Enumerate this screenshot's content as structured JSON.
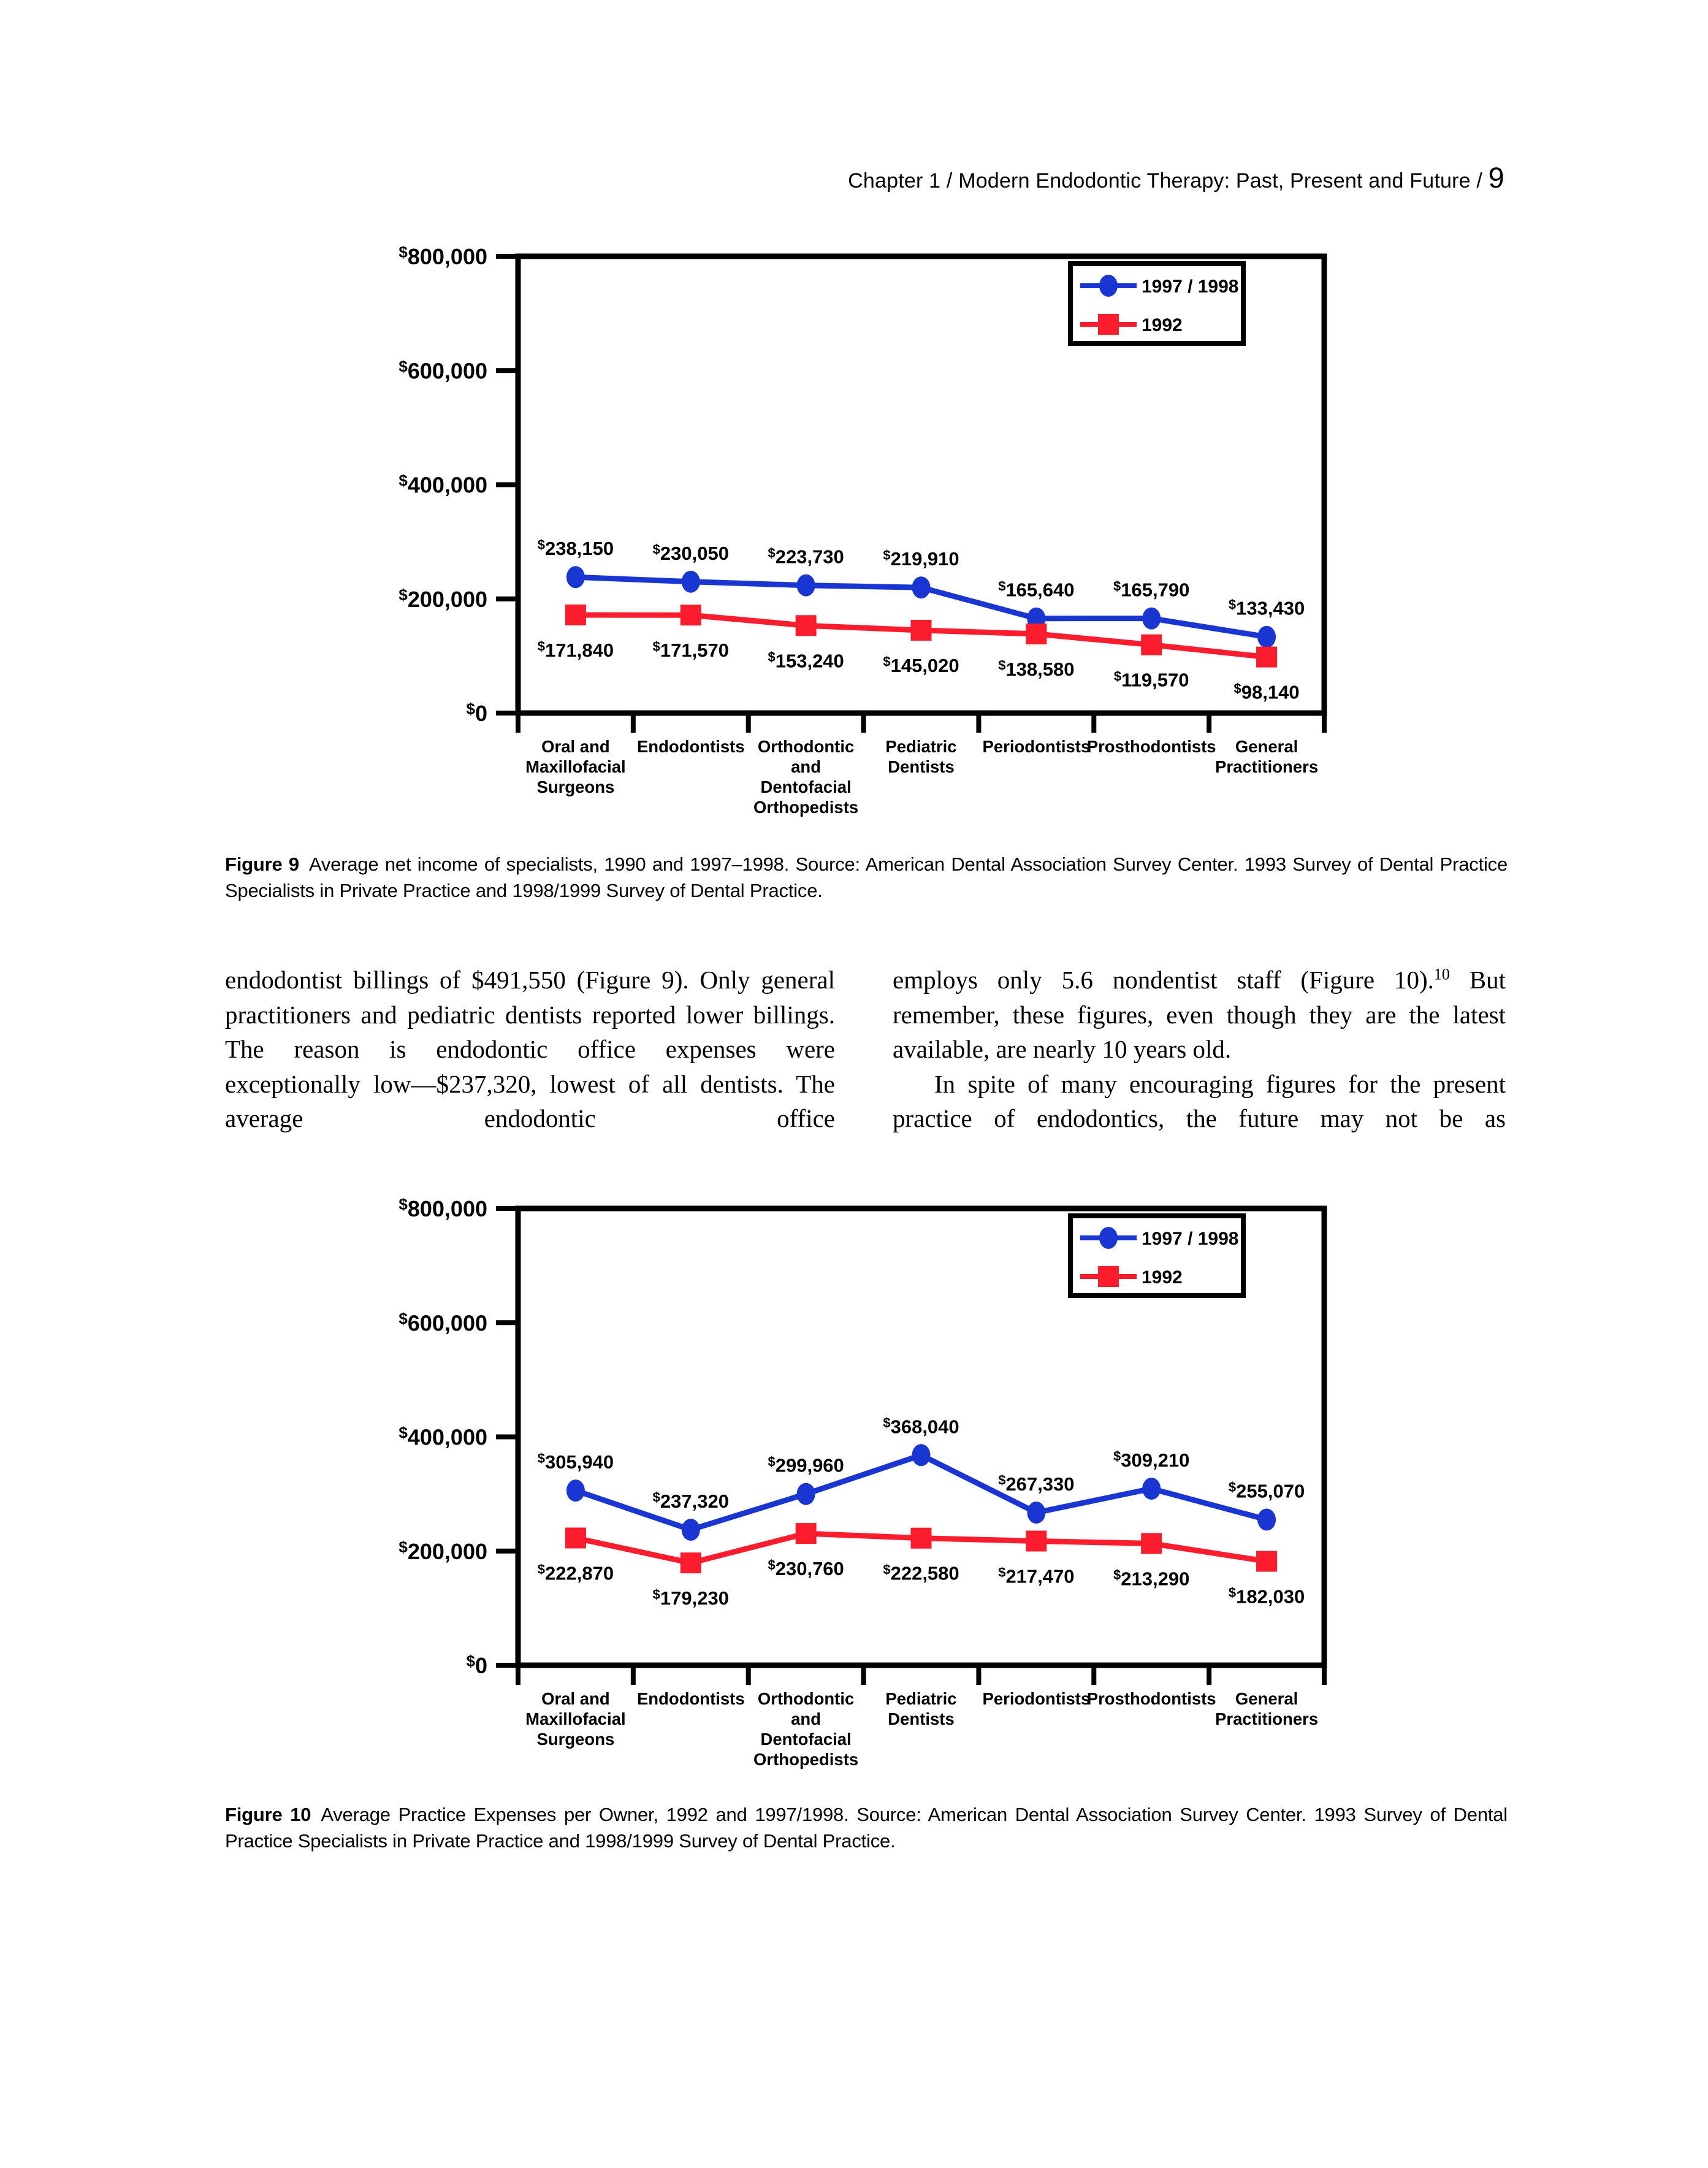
{
  "page": {
    "header": {
      "text": "Chapter 1 / Modern Endodontic Therapy: Past, Present and Future / ",
      "page_number": "9"
    },
    "captions": {
      "fig9_label": "Figure 9",
      "fig9_text": "Average net income of specialists, 1990 and 1997–1998. Source: American Dental Association Survey Center. 1993 Survey of Dental Practice Specialists in Private Practice and 1998/1999 Survey of Dental Practice.",
      "fig10_label": "Figure 10",
      "fig10_text": "Average Practice Expenses per Owner, 1992 and 1997/1998. Source: American Dental Association Survey Center. 1993 Survey of Dental Practice Specialists in Private Practice and 1998/1999 Survey of Dental Practice."
    },
    "body": {
      "left_column": "endodontist billings of $491,550 (Figure 9). Only general practitioners and pediatric dentists reported lower billings. The reason is endodontic office expenses were exceptionally low—$237,320, lowest of all dentists. The average endodontic office",
      "right_column": {
        "p1_before": "employs only 5.6 nondentist staff (Figure 10).",
        "p1_sup": "10",
        "p1_after": " But remember, these figures, even though they are the latest available, are nearly 10 years old.",
        "p2": "In spite of many encouraging figures for the present practice of endodontics, the future may not be as"
      }
    }
  },
  "colors": {
    "series_1997_1998": "#1a36d2",
    "series_1992": "#fb1c2e",
    "axis": "#000000"
  },
  "chart_data": [
    {
      "id": "figure9",
      "type": "line",
      "title": "Average net income of specialists, 1990 and 1997–1998",
      "categories": [
        "Oral and Maxillofacial Surgeons",
        "Endodontists",
        "Orthodontic and Dentofacial Orthopedists",
        "Pediatric Dentists",
        "Periodontists",
        "Prosthodontists",
        "General Practitioners"
      ],
      "category_lines": [
        [
          "Oral and",
          "Maxillofacial",
          "Surgeons"
        ],
        [
          "Endodontists"
        ],
        [
          "Orthodontic",
          "and",
          "Dentofacial",
          "Orthopedists"
        ],
        [
          "Pediatric",
          "Dentists"
        ],
        [
          "Periodontists"
        ],
        [
          "Prosthodontists"
        ],
        [
          "General",
          "Practitioners"
        ]
      ],
      "series": [
        {
          "name": "1997 / 1998",
          "marker": "circle",
          "color_key": "series_1997_1998",
          "values": [
            238150,
            230050,
            223730,
            219910,
            165640,
            165790,
            133430
          ],
          "point_labels": [
            "238,150",
            "230,050",
            "223,730",
            "219,910",
            "165,640",
            "165,790",
            "133,430"
          ]
        },
        {
          "name": "1992",
          "marker": "square",
          "color_key": "series_1992",
          "values": [
            171840,
            171570,
            153240,
            145020,
            138580,
            119570,
            98140
          ],
          "point_labels": [
            "171,840",
            "171,570",
            "153,240",
            "145,020",
            "138,580",
            "119,570",
            "98,140"
          ]
        }
      ],
      "ylim": [
        0,
        800000
      ],
      "ytick_values": [
        800000,
        600000,
        400000,
        200000,
        0
      ],
      "ytick_labels": [
        "800,000",
        "600,000",
        "400,000",
        "200,000",
        "0"
      ],
      "legend": {
        "entries": [
          "1997 / 1998",
          "1992"
        ],
        "position": "top-right"
      },
      "grid": false
    },
    {
      "id": "figure10",
      "type": "line",
      "title": "Average Practice Expenses per Owner, 1992 and 1997/1998",
      "categories": [
        "Oral and Maxillofacial Surgeons",
        "Endodontists",
        "Orthodontic and Dentofacial Orthopedists",
        "Pediatric Dentists",
        "Periodontists",
        "Prosthodontists",
        "General Practitioners"
      ],
      "category_lines": [
        [
          "Oral and",
          "Maxillofacial",
          "Surgeons"
        ],
        [
          "Endodontists"
        ],
        [
          "Orthodontic",
          "and",
          "Dentofacial",
          "Orthopedists"
        ],
        [
          "Pediatric",
          "Dentists"
        ],
        [
          "Periodontists"
        ],
        [
          "Prosthodontists"
        ],
        [
          "General",
          "Practitioners"
        ]
      ],
      "series": [
        {
          "name": "1997 / 1998",
          "marker": "circle",
          "color_key": "series_1997_1998",
          "values": [
            305940,
            237320,
            299960,
            368040,
            267330,
            309210,
            255070
          ],
          "point_labels": [
            "305,940",
            "237,320",
            "299,960",
            "368,040",
            "267,330",
            "309,210",
            "255,070"
          ]
        },
        {
          "name": "1992",
          "marker": "square",
          "color_key": "series_1992",
          "values": [
            222870,
            179230,
            230760,
            222580,
            217470,
            213290,
            182030
          ],
          "point_labels": [
            "222,870",
            "179,230",
            "230,760",
            "222,580",
            "217,470",
            "213,290",
            "182,030"
          ]
        }
      ],
      "ylim": [
        0,
        800000
      ],
      "ytick_values": [
        800000,
        600000,
        400000,
        200000,
        0
      ],
      "ytick_labels": [
        "800,000",
        "600,000",
        "400,000",
        "200,000",
        "0"
      ],
      "legend": {
        "entries": [
          "1997 / 1998",
          "1992"
        ],
        "position": "top-right"
      },
      "grid": false
    }
  ]
}
